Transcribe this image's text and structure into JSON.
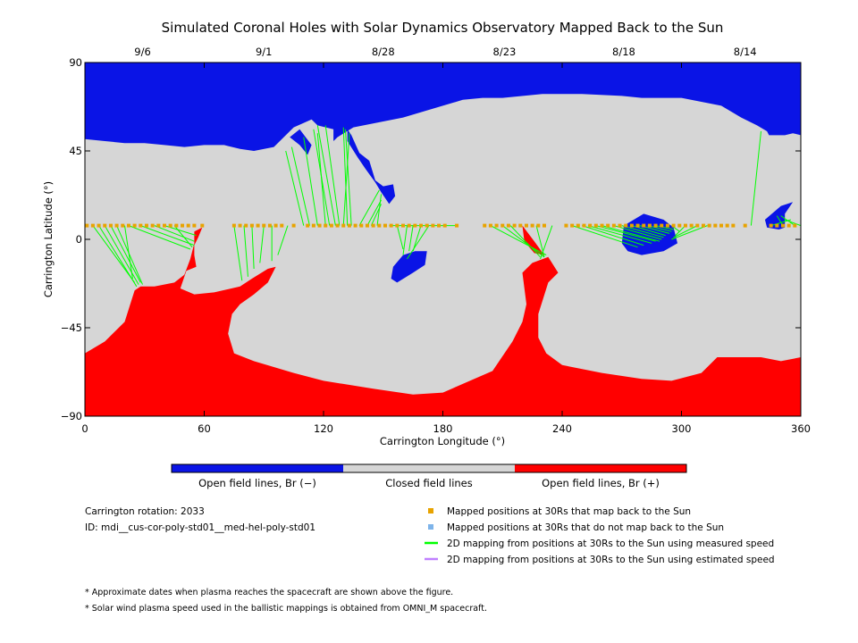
{
  "chart_data": {
    "type": "map",
    "title": "Simulated Coronal Holes with Solar Dynamics Observatory Mapped Back to the Sun",
    "xlabel": "Carrington Longitude (°)",
    "ylabel": "Carrington Latitude (°)",
    "xlim": [
      0,
      360
    ],
    "ylim": [
      -90,
      90
    ],
    "xticks": [
      0,
      60,
      120,
      180,
      240,
      300,
      360
    ],
    "yticks": [
      -90,
      -45,
      0,
      45,
      90
    ],
    "top_date_axis": {
      "labels": [
        "9/6",
        "9/1",
        "8/28",
        "8/23",
        "8/18",
        "8/14"
      ],
      "longitudes": [
        29,
        90,
        150,
        211,
        271,
        332
      ]
    },
    "colors": {
      "open_negative": "#0a14e6",
      "closed": "#d6d6d6",
      "open_positive": "#ff0000",
      "mapped_back": "#e8a300",
      "not_mapped_back": "#7eb4ea",
      "measured_speed_line": "#00ff00",
      "estimated_speed_line": "#c080ff"
    },
    "colorbar": {
      "segments": [
        {
          "label": "Open field lines, Br (−)",
          "color": "#0a14e6"
        },
        {
          "label": "Closed field lines",
          "color": "#d6d6d6"
        },
        {
          "label": "Open field lines, Br (+)",
          "color": "#ff0000"
        }
      ]
    },
    "regions": {
      "north_negative": [
        [
          0,
          90
        ],
        [
          360,
          90
        ],
        [
          360,
          53
        ],
        [
          356,
          54
        ],
        [
          352,
          53
        ],
        [
          344,
          53
        ],
        [
          343,
          55
        ],
        [
          338,
          58
        ],
        [
          330,
          62
        ],
        [
          320,
          68
        ],
        [
          300,
          72
        ],
        [
          280,
          72
        ],
        [
          270,
          73
        ],
        [
          250,
          74
        ],
        [
          230,
          74
        ],
        [
          210,
          72
        ],
        [
          200,
          72
        ],
        [
          190,
          71
        ],
        [
          180,
          68
        ],
        [
          160,
          62
        ],
        [
          150,
          60
        ],
        [
          135,
          57
        ],
        [
          127,
          52
        ],
        [
          125,
          50
        ],
        [
          125,
          56
        ],
        [
          117,
          58
        ],
        [
          114,
          61
        ],
        [
          105,
          57
        ],
        [
          95,
          47
        ],
        [
          85,
          45
        ],
        [
          78,
          46
        ],
        [
          70,
          48
        ],
        [
          60,
          48
        ],
        [
          50,
          47
        ],
        [
          40,
          48
        ],
        [
          30,
          49
        ],
        [
          20,
          49
        ],
        [
          10,
          50
        ],
        [
          0,
          51
        ]
      ],
      "north_neg_patches": [
        [
          [
            132,
            56
          ],
          [
            134,
            53
          ],
          [
            138,
            44
          ],
          [
            143,
            40
          ],
          [
            146,
            30
          ],
          [
            150,
            27
          ],
          [
            155,
            28
          ],
          [
            156,
            22
          ],
          [
            153,
            18
          ],
          [
            149,
            24
          ],
          [
            146,
            29
          ],
          [
            141,
            36
          ],
          [
            137,
            42
          ],
          [
            132,
            50
          ]
        ],
        [
          [
            103,
            52
          ],
          [
            108,
            48
          ],
          [
            112,
            43
          ],
          [
            114,
            48
          ],
          [
            108,
            56
          ]
        ]
      ],
      "equatorial_negative": [
        [
          [
            271,
            7
          ],
          [
            281,
            13
          ],
          [
            291,
            10
          ],
          [
            296,
            6
          ],
          [
            298,
            -2
          ],
          [
            291,
            -6
          ],
          [
            280,
            -8
          ],
          [
            273,
            -6
          ],
          [
            270,
            -2
          ]
        ],
        [
          [
            155,
            -14
          ],
          [
            160,
            -8
          ],
          [
            166,
            -6
          ],
          [
            172,
            -6
          ],
          [
            171,
            -13
          ],
          [
            165,
            -17
          ],
          [
            157,
            -22
          ],
          [
            154,
            -20
          ]
        ],
        [
          [
            342,
            10
          ],
          [
            350,
            17
          ],
          [
            356,
            19
          ],
          [
            352,
            13
          ],
          [
            352,
            6
          ],
          [
            349,
            5
          ],
          [
            343,
            6
          ]
        ]
      ],
      "south_positive": [
        [
          0,
          -58
        ],
        [
          10,
          -52
        ],
        [
          15,
          -47
        ],
        [
          20,
          -42
        ],
        [
          25,
          -26
        ],
        [
          28,
          -24
        ],
        [
          35,
          -24
        ],
        [
          45,
          -22
        ],
        [
          50,
          -18
        ],
        [
          53,
          -10
        ],
        [
          55,
          -2
        ],
        [
          55,
          -8
        ],
        [
          56,
          -14
        ],
        [
          51,
          -16
        ],
        [
          48,
          -25
        ],
        [
          55,
          -28
        ],
        [
          65,
          -27
        ],
        [
          78,
          -24
        ],
        [
          84,
          -20
        ],
        [
          92,
          -15
        ],
        [
          96,
          -14
        ],
        [
          92,
          -22
        ],
        [
          85,
          -28
        ],
        [
          78,
          -33
        ],
        [
          74,
          -38
        ],
        [
          72,
          -48
        ],
        [
          75,
          -58
        ],
        [
          85,
          -62
        ],
        [
          95,
          -65
        ],
        [
          105,
          -68
        ],
        [
          120,
          -72
        ],
        [
          145,
          -76
        ],
        [
          165,
          -79
        ],
        [
          180,
          -78
        ],
        [
          205,
          -67
        ],
        [
          215,
          -52
        ],
        [
          220,
          -42
        ],
        [
          222,
          -33
        ],
        [
          220,
          -17
        ],
        [
          225,
          -12
        ],
        [
          233,
          -9
        ],
        [
          238,
          -17
        ],
        [
          233,
          -22
        ],
        [
          228,
          -38
        ],
        [
          228,
          -50
        ],
        [
          232,
          -58
        ],
        [
          240,
          -64
        ],
        [
          260,
          -68
        ],
        [
          280,
          -71
        ],
        [
          295,
          -72
        ],
        [
          310,
          -68
        ],
        [
          318,
          -60
        ],
        [
          325,
          -60
        ],
        [
          340,
          -60
        ],
        [
          350,
          -62
        ],
        [
          360,
          -60
        ],
        [
          360,
          -90
        ],
        [
          0,
          -90
        ]
      ],
      "south_pos_patches": [
        [
          [
            55,
            4
          ],
          [
            59,
            6
          ],
          [
            57,
            1
          ],
          [
            55,
            -3
          ]
        ],
        [
          [
            220,
            7
          ],
          [
            226,
            -1
          ],
          [
            231,
            -8
          ],
          [
            226,
            -7
          ],
          [
            221,
            -1
          ]
        ]
      ]
    },
    "mapped_positions": {
      "label": "Mapped positions at 30Rs that map back to the Sun",
      "latitude": 7,
      "longitudes": [
        1,
        4,
        7,
        10,
        13,
        16,
        19,
        22,
        25,
        28,
        31,
        34,
        37,
        40,
        43,
        46,
        49,
        52,
        55,
        59,
        75,
        78,
        81,
        84,
        87,
        90,
        93,
        96,
        99,
        105,
        112,
        115,
        118,
        121,
        124,
        127,
        130,
        133,
        136,
        139,
        142,
        145,
        148,
        151,
        154,
        157,
        160,
        163,
        166,
        169,
        172,
        175,
        178,
        181,
        187,
        201,
        204,
        207,
        210,
        213,
        216,
        219,
        222,
        225,
        228,
        231,
        242,
        245,
        248,
        251,
        254,
        257,
        260,
        263,
        266,
        269,
        272,
        275,
        278,
        281,
        284,
        287,
        290,
        293,
        296,
        299,
        302,
        305,
        308,
        311,
        314,
        317,
        320,
        323,
        326,
        332,
        345,
        348,
        351,
        354,
        357
      ]
    },
    "not_mapped_positions": {
      "label": "Mapped positions at 30Rs that do not map back to the Sun",
      "longitudes": []
    },
    "measured_speed_mappings": {
      "label": "2D mapping from positions at 30Rs to the Sun using measured speed",
      "segments": [
        [
          4,
          7,
          25,
          -22
        ],
        [
          7,
          7,
          26,
          -24
        ],
        [
          10,
          7,
          27,
          -23
        ],
        [
          13,
          7,
          28,
          -22
        ],
        [
          16,
          7,
          29,
          -23
        ],
        [
          20,
          7,
          24,
          -20
        ],
        [
          22,
          7,
          53,
          -5
        ],
        [
          28,
          7,
          55,
          -3
        ],
        [
          35,
          7,
          55,
          -1
        ],
        [
          40,
          7,
          56,
          2
        ],
        [
          45,
          7,
          54,
          -4
        ],
        [
          75,
          7,
          79,
          -21
        ],
        [
          80,
          7,
          82,
          -19
        ],
        [
          84,
          7,
          85,
          -15
        ],
        [
          90,
          7,
          88,
          -12
        ],
        [
          94,
          7,
          94,
          -11
        ],
        [
          102,
          7,
          97,
          -8
        ],
        [
          110,
          7,
          101,
          45
        ],
        [
          113,
          7,
          104,
          47
        ],
        [
          117,
          7,
          110,
          52
        ],
        [
          121,
          7,
          117,
          54
        ],
        [
          123,
          7,
          115,
          56
        ],
        [
          126,
          7,
          117,
          58
        ],
        [
          128,
          7,
          121,
          58
        ],
        [
          130,
          7,
          133,
          54
        ],
        [
          132,
          7,
          130,
          57
        ],
        [
          134,
          7,
          131,
          56
        ],
        [
          138,
          7,
          148,
          25
        ],
        [
          142,
          7,
          149,
          20
        ],
        [
          144,
          7,
          149,
          18
        ],
        [
          147,
          7,
          149,
          23
        ],
        [
          153,
          7,
          187,
          7
        ],
        [
          157,
          7,
          160,
          -5
        ],
        [
          162,
          7,
          160,
          -8
        ],
        [
          165,
          7,
          163,
          -6
        ],
        [
          169,
          7,
          165,
          -6
        ],
        [
          173,
          7,
          162,
          -10
        ],
        [
          204,
          7,
          232,
          -8
        ],
        [
          210,
          7,
          231,
          -9
        ],
        [
          214,
          7,
          229,
          -9
        ],
        [
          227,
          7,
          231,
          -9
        ],
        [
          235,
          7,
          229,
          -10
        ],
        [
          245,
          7,
          278,
          -4
        ],
        [
          250,
          7,
          281,
          -3
        ],
        [
          253,
          7,
          285,
          -2
        ],
        [
          257,
          7,
          287,
          -1
        ],
        [
          260,
          7,
          289,
          -1
        ],
        [
          266,
          7,
          290,
          0
        ],
        [
          270,
          7,
          291,
          1
        ],
        [
          275,
          7,
          292,
          2
        ],
        [
          279,
          7,
          294,
          3
        ],
        [
          283,
          7,
          295,
          4
        ],
        [
          287,
          7,
          296,
          5
        ],
        [
          295,
          7,
          299,
          4
        ],
        [
          302,
          7,
          297,
          2
        ],
        [
          308,
          7,
          296,
          1
        ],
        [
          313,
          7,
          295,
          0
        ],
        [
          335,
          7,
          340,
          55
        ],
        [
          345,
          7,
          355,
          10
        ],
        [
          351,
          7,
          348,
          12
        ],
        [
          357,
          7,
          350,
          12
        ],
        [
          360,
          7,
          352,
          10
        ]
      ]
    },
    "estimated_speed_mappings": {
      "label": "2D mapping from positions at 30Rs to the Sun using estimated speed",
      "segments": []
    },
    "info": {
      "carrington_rotation": "Carrington rotation: 2033",
      "id": "ID: mdi__cus-cor-poly-std01__med-hel-poly-std01"
    },
    "notes": [
      "* Approximate dates when plasma reaches the spacecraft are shown above the figure.",
      "* Solar wind plasma speed used in the ballistic mappings is obtained from OMNI_M spacecraft."
    ]
  }
}
